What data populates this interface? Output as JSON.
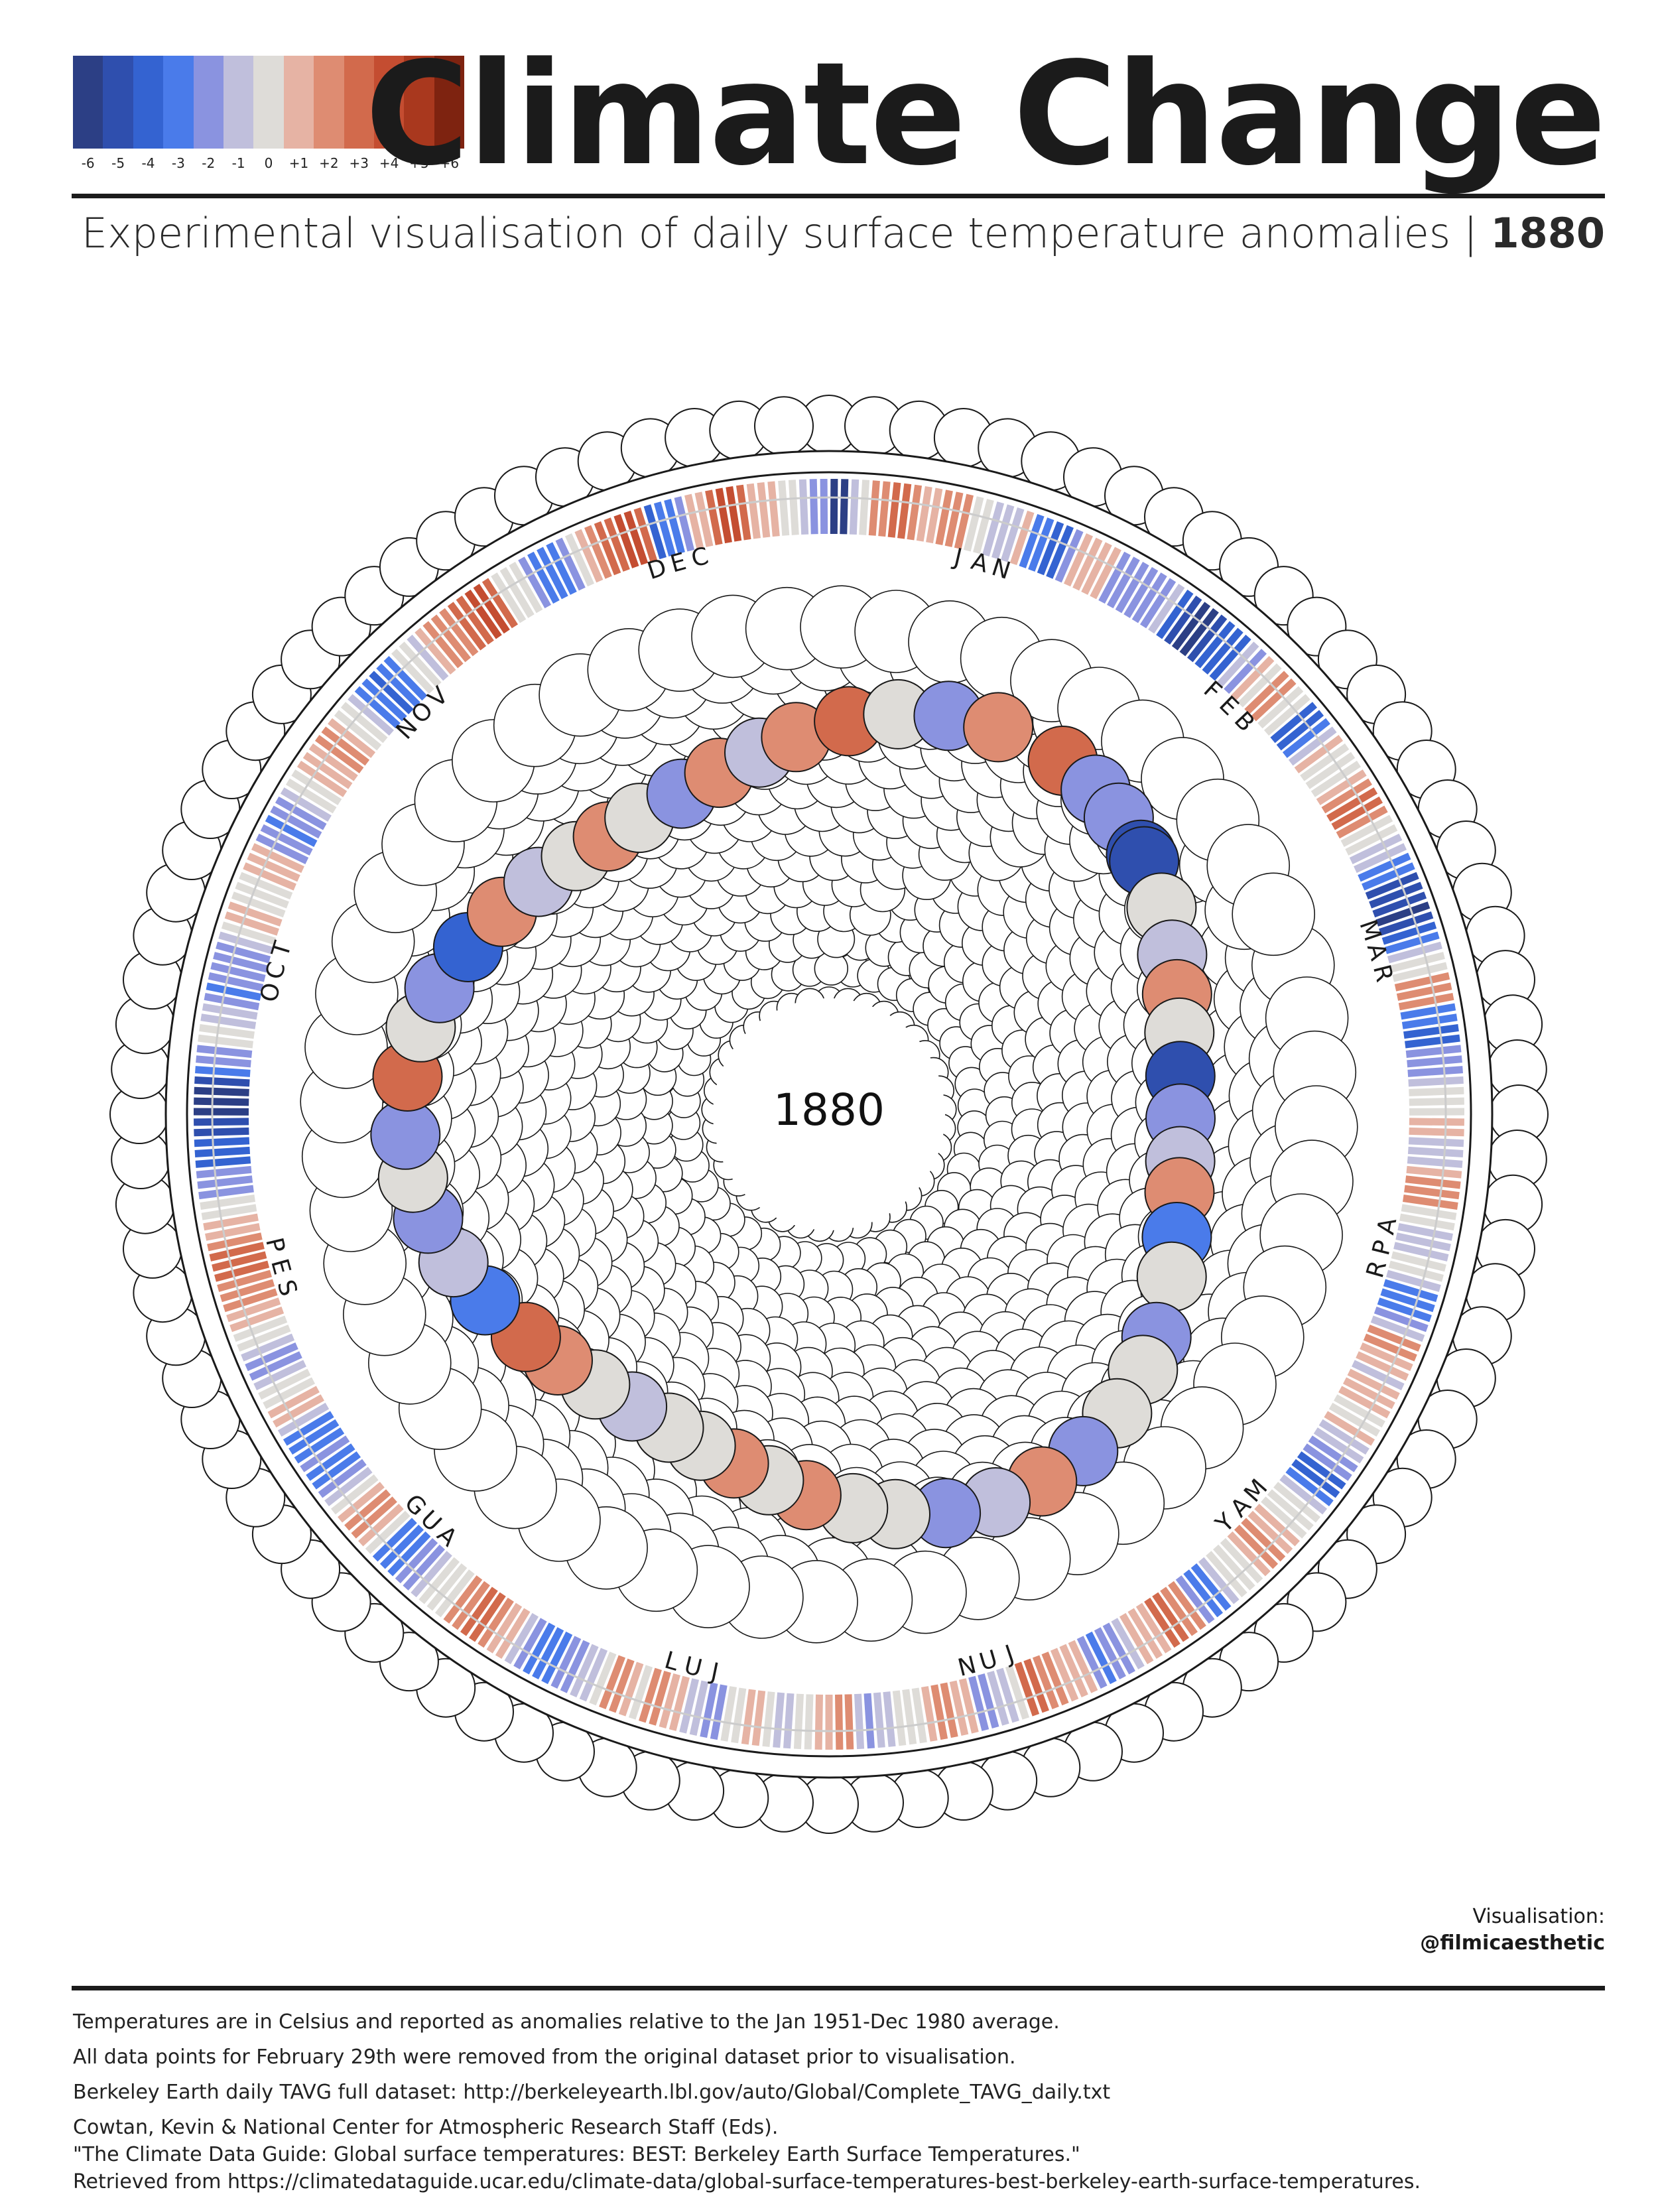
{
  "title": "Climate Change",
  "subtitle": {
    "text": "Experimental visualisation of daily surface temperature anomalies | ",
    "year": "1880"
  },
  "legend": {
    "labels": [
      "-6",
      "-5",
      "-4",
      "-3",
      "-2",
      "-1",
      "0",
      "+1",
      "+2",
      "+3",
      "+4",
      "+5",
      "+6"
    ],
    "colors": [
      "#2c3f85",
      "#2f4fae",
      "#3463d1",
      "#4a7bea",
      "#8a93e0",
      "#c0bfdc",
      "#dedcd8",
      "#e6b3a4",
      "#de8c72",
      "#d26a4c",
      "#c44d31",
      "#a9381e",
      "#7e2310"
    ]
  },
  "center_year": "1880",
  "months": [
    "JAN",
    "FEB",
    "MAR",
    "APR",
    "MAY",
    "JUN",
    "JUL",
    "AUG",
    "SEP",
    "OCT",
    "NOV",
    "DEC"
  ],
  "colored_spiral_anomalies": [
    {
      "month": "JAN",
      "day": 3,
      "level": 3
    },
    {
      "month": "JAN",
      "day": 9,
      "level": -2
    },
    {
      "month": "JAN",
      "day": 14,
      "level": -2
    },
    {
      "month": "JAN",
      "day": 20,
      "level": -5
    },
    {
      "month": "JAN",
      "day": 21,
      "level": -5
    },
    {
      "month": "JAN",
      "day": 28,
      "level": 0
    },
    {
      "month": "FEB",
      "day": 4,
      "level": -1
    },
    {
      "month": "FEB",
      "day": 10,
      "level": 2
    },
    {
      "month": "FEB",
      "day": 16,
      "level": 0
    },
    {
      "month": "FEB",
      "day": 23,
      "level": -5
    },
    {
      "month": "MAR",
      "day": 2,
      "level": -2
    },
    {
      "month": "MAR",
      "day": 9,
      "level": -1
    },
    {
      "month": "MAR",
      "day": 14,
      "level": 2
    },
    {
      "month": "MAR",
      "day": 21,
      "level": -3
    },
    {
      "month": "MAR",
      "day": 27,
      "level": 0
    },
    {
      "month": "APR",
      "day": 5,
      "level": -2
    },
    {
      "month": "APR",
      "day": 10,
      "level": 0
    },
    {
      "month": "APR",
      "day": 17,
      "level": 0
    },
    {
      "month": "APR",
      "day": 24,
      "level": -2
    },
    {
      "month": "MAY",
      "day": 1,
      "level": 2
    },
    {
      "month": "MAY",
      "day": 8,
      "level": -1
    },
    {
      "month": "MAY",
      "day": 15,
      "level": -2
    },
    {
      "month": "MAY",
      "day": 22,
      "level": 0
    },
    {
      "month": "MAY",
      "day": 28,
      "level": 0
    },
    {
      "month": "JUN",
      "day": 4,
      "level": 2
    },
    {
      "month": "JUN",
      "day": 10,
      "level": 0
    },
    {
      "month": "JUN",
      "day": 16,
      "level": 2
    },
    {
      "month": "JUN",
      "day": 22,
      "level": 0
    },
    {
      "month": "JUN",
      "day": 28,
      "level": 0
    },
    {
      "month": "JUL",
      "day": 5,
      "level": -1
    },
    {
      "month": "JUL",
      "day": 12,
      "level": 0
    },
    {
      "month": "JUL",
      "day": 19,
      "level": 2
    },
    {
      "month": "JUL",
      "day": 25,
      "level": 3
    },
    {
      "month": "AUG",
      "day": 2,
      "level": -3
    },
    {
      "month": "AUG",
      "day": 9,
      "level": -1
    },
    {
      "month": "AUG",
      "day": 16,
      "level": -2
    },
    {
      "month": "AUG",
      "day": 22,
      "level": 0
    },
    {
      "month": "AUG",
      "day": 28,
      "level": -2
    },
    {
      "month": "SEP",
      "day": 5,
      "level": 3
    },
    {
      "month": "SEP",
      "day": 12,
      "level": 0
    },
    {
      "month": "SEP",
      "day": 18,
      "level": -2
    },
    {
      "month": "SEP",
      "day": 25,
      "level": -4
    },
    {
      "month": "OCT",
      "day": 2,
      "level": 2
    },
    {
      "month": "OCT",
      "day": 9,
      "level": -1
    },
    {
      "month": "OCT",
      "day": 16,
      "level": 0
    },
    {
      "month": "OCT",
      "day": 22,
      "level": 2
    },
    {
      "month": "OCT",
      "day": 28,
      "level": 0
    },
    {
      "month": "NOV",
      "day": 5,
      "level": -2
    },
    {
      "month": "NOV",
      "day": 12,
      "level": 2
    },
    {
      "month": "NOV",
      "day": 19,
      "level": -1
    },
    {
      "month": "NOV",
      "day": 25,
      "level": 2
    },
    {
      "month": "DEC",
      "day": 3,
      "level": 3
    },
    {
      "month": "DEC",
      "day": 10,
      "level": 0
    },
    {
      "month": "DEC",
      "day": 17,
      "level": -2
    },
    {
      "month": "DEC",
      "day": 24,
      "level": 2
    }
  ],
  "daily_anomaly_levels": [
    -6,
    -6,
    -1,
    0,
    2,
    2,
    3,
    3,
    2,
    1,
    1,
    2,
    2,
    2,
    0,
    0,
    -1,
    -1,
    -1,
    1,
    -3,
    -3,
    -4,
    -4,
    -2,
    1,
    1,
    1,
    1,
    -2,
    -2,
    -2,
    -2,
    -2,
    -2,
    -1,
    -4,
    -5,
    -6,
    -6,
    -5,
    -4,
    -4,
    -4,
    -1,
    -2,
    1,
    0,
    2,
    2,
    0,
    0,
    -4,
    -4,
    -3,
    -1,
    1,
    0,
    0,
    0,
    1,
    2,
    3,
    3,
    2,
    0,
    0,
    -1,
    -1,
    -3,
    -3,
    -5,
    -5,
    -5,
    -6,
    -5,
    -4,
    -3,
    -1,
    0,
    0,
    2,
    2,
    2,
    -3,
    -3,
    -4,
    -4,
    -2,
    -2,
    -2,
    -1,
    0,
    0,
    0,
    1,
    1,
    -1,
    -1,
    -1,
    1,
    2,
    2,
    2,
    0,
    0,
    -1,
    -1,
    -1,
    0,
    0,
    -1,
    -3,
    -3,
    -3,
    -2,
    -1,
    2,
    2,
    1,
    1,
    -1,
    1,
    1,
    1,
    0,
    0,
    1,
    -1,
    -1,
    -2,
    -2,
    -4,
    -4,
    -3,
    -1,
    0,
    0,
    0,
    1,
    1,
    2,
    2,
    1,
    0,
    0,
    0,
    -1,
    -3,
    -3,
    -2,
    2,
    2,
    3,
    3,
    1,
    1,
    1,
    -1,
    -2,
    -2,
    -3,
    -2,
    1,
    1,
    1,
    2,
    2,
    3,
    3,
    0,
    -1,
    -1,
    -2,
    -2,
    1,
    1,
    2,
    2,
    1,
    0,
    0,
    0,
    -1,
    -1,
    -2,
    -1,
    2,
    2,
    1,
    1,
    0,
    0,
    -1,
    -1,
    0,
    1,
    1,
    0,
    0,
    -2,
    -2,
    -1,
    -1,
    1,
    1,
    2,
    2,
    0,
    1,
    2,
    2,
    0,
    -1,
    -1,
    -2,
    -2,
    -3,
    -3,
    -3,
    -2,
    -1,
    1,
    1,
    2,
    3,
    3,
    2,
    2,
    0,
    0,
    0,
    -1,
    -2,
    -2,
    -3,
    -3,
    -3,
    0,
    1,
    2,
    2,
    1,
    0,
    -1,
    -2,
    -3,
    -3,
    -2,
    -3,
    -3,
    -3,
    -1,
    1,
    1,
    0,
    0,
    -1,
    -2,
    -2,
    -1,
    0,
    0,
    1,
    1,
    2,
    2,
    2,
    3,
    3,
    3,
    2,
    1,
    1,
    0,
    0,
    -2,
    -2,
    -2,
    -4,
    -4,
    -4,
    -5,
    -5,
    -6,
    -6,
    -6,
    -5,
    -3,
    -2,
    -2,
    0,
    0,
    -1,
    -1,
    -2,
    -3,
    -2,
    -2,
    -2,
    -2,
    -1,
    0,
    1,
    1,
    0,
    0,
    0,
    1,
    1,
    1,
    -2,
    -2,
    -3,
    -2,
    -2,
    -1,
    0,
    0,
    1,
    1,
    1,
    2,
    2,
    1,
    0,
    0,
    -1,
    -3,
    -3,
    -4,
    -3,
    -3,
    0,
    0,
    -1,
    1,
    2,
    2,
    2,
    3,
    3,
    4,
    4,
    3,
    0,
    0,
    0,
    -2,
    -3,
    -3,
    -3,
    -2,
    0,
    1,
    2,
    3,
    3,
    4,
    4,
    3,
    -4,
    -3,
    -3,
    -2,
    1,
    1,
    3,
    4,
    4,
    3,
    1,
    1,
    1,
    0,
    0,
    -1,
    -2,
    -2
  ],
  "credit": {
    "label": "Visualisation:",
    "handle": "@filmicaesthetic"
  },
  "notes": [
    "Temperatures are in Celsius and reported as anomalies relative to the Jan 1951-Dec 1980 average.",
    "All data points for February 29th were removed from the original dataset prior to visualisation.",
    "Berkeley Earth daily TAVG full dataset: http://berkeleyearth.lbl.gov/auto/Global/Complete_TAVG_daily.txt",
    "Cowtan, Kevin & National Center for Atmospheric Research Staff (Eds).",
    "\"The Climate Data Guide: Global surface temperatures: BEST: Berkeley Earth Surface Temperatures.\"",
    "Retrieved from https://climatedataguide.ucar.edu/climate-data/global-surface-temperatures-best-berkeley-earth-surface-temperatures."
  ]
}
